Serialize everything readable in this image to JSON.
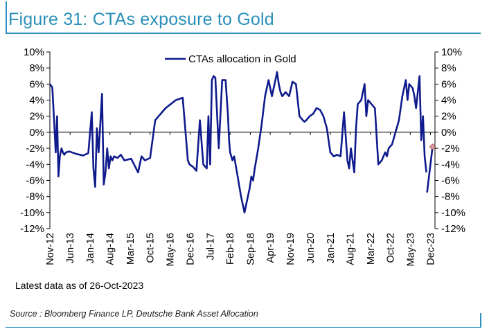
{
  "header": {
    "title": "Figure 31: CTAs exposure to Gold"
  },
  "footer": {
    "note": "Latest data as of 26-Oct-2023",
    "source": "Source : Bloomberg Finance LP, Deutsche Bank Asset Allocation"
  },
  "colors": {
    "accent": "#2a8fb8",
    "series": "#0f1a8c",
    "marker": "#e8a0a0"
  },
  "chart_data": {
    "type": "line",
    "title": "Figure 31: CTAs exposure to Gold",
    "xlabel": "",
    "ylabel": "",
    "ylim": [
      -12,
      10
    ],
    "xlim": [
      2012.83,
      2024.05
    ],
    "yticks": [
      10,
      8,
      6,
      4,
      2,
      0,
      -2,
      -4,
      -6,
      -8,
      -10,
      -12
    ],
    "ytick_labels": [
      "10%",
      "8%",
      "6%",
      "4%",
      "2%",
      "0%",
      "-2%",
      "-4%",
      "-6%",
      "-8%",
      "-10%",
      "-12%"
    ],
    "xticks": [
      2012.83,
      2013.42,
      2014.0,
      2014.58,
      2015.17,
      2015.75,
      2016.33,
      2016.92,
      2017.5,
      2018.08,
      2018.67,
      2019.25,
      2019.83,
      2020.42,
      2021.0,
      2021.58,
      2022.17,
      2022.75,
      2023.33,
      2023.92
    ],
    "xtick_labels": [
      "Nov-12",
      "Jun-13",
      "Jan-14",
      "Aug-14",
      "Mar-15",
      "Oct-15",
      "May-16",
      "Dec-16",
      "Jul-17",
      "Feb-18",
      "Sep-18",
      "Apr-19",
      "Nov-19",
      "Jun-20",
      "Jan-21",
      "Aug-21",
      "Mar-22",
      "Oct-22",
      "May-23",
      "Dec-23"
    ],
    "legend": {
      "position": "top-center",
      "entries": [
        "CTAs allocation in Gold"
      ]
    },
    "series": [
      {
        "name": "CTAs allocation in Gold",
        "x": [
          2012.83,
          2012.9,
          2012.96,
          2013.0,
          2013.04,
          2013.08,
          2013.12,
          2013.17,
          2013.21,
          2013.25,
          2013.3,
          2013.4,
          2013.6,
          2013.8,
          2013.95,
          2014.05,
          2014.1,
          2014.15,
          2014.2,
          2014.25,
          2014.3,
          2014.35,
          2014.4,
          2014.45,
          2014.5,
          2014.55,
          2014.6,
          2014.65,
          2014.7,
          2014.8,
          2014.9,
          2015.0,
          2015.2,
          2015.4,
          2015.5,
          2015.6,
          2015.75,
          2015.9,
          2016.0,
          2016.1,
          2016.2,
          2016.35,
          2016.5,
          2016.7,
          2016.85,
          2016.9,
          2017.0,
          2017.1,
          2017.2,
          2017.3,
          2017.4,
          2017.45,
          2017.5,
          2017.55,
          2017.6,
          2017.65,
          2017.75,
          2017.85,
          2017.95,
          2018.02,
          2018.05,
          2018.08,
          2018.15,
          2018.2,
          2018.3,
          2018.4,
          2018.5,
          2018.6,
          2018.65,
          2018.7,
          2018.75,
          2018.8,
          2018.9,
          2019.0,
          2019.1,
          2019.2,
          2019.3,
          2019.4,
          2019.45,
          2019.5,
          2019.55,
          2019.6,
          2019.7,
          2019.8,
          2019.9,
          2020.0,
          2020.1,
          2020.2,
          2020.25,
          2020.3,
          2020.4,
          2020.5,
          2020.6,
          2020.7,
          2020.8,
          2020.9,
          2021.0,
          2021.1,
          2021.2,
          2021.3,
          2021.4,
          2021.5,
          2021.55,
          2021.6,
          2021.7,
          2021.75,
          2021.8,
          2021.9,
          2022.0,
          2022.05,
          2022.1,
          2022.2,
          2022.3,
          2022.4,
          2022.5,
          2022.6,
          2022.65,
          2022.7,
          2022.8,
          2022.9,
          2023.0,
          2023.1,
          2023.2,
          2023.25,
          2023.3,
          2023.4,
          2023.45,
          2023.5,
          2023.55,
          2023.6,
          2023.65,
          2023.7,
          2023.75,
          2023.8
        ],
        "values": [
          6.0,
          5.6,
          1.0,
          -2.5,
          2.0,
          -5.5,
          -3.0,
          -2.0,
          -2.5,
          -2.8,
          -2.5,
          -2.4,
          -2.7,
          -2.9,
          -2.6,
          2.5,
          -4.5,
          -6.8,
          0.5,
          -2.5,
          1.0,
          4.8,
          -6.5,
          -5.0,
          -2.0,
          -4.5,
          -3.0,
          -3.5,
          -3.0,
          -3.2,
          -2.8,
          -3.5,
          -3.3,
          -5.0,
          -3.0,
          -3.5,
          -3.2,
          1.5,
          2.0,
          2.5,
          3.0,
          3.5,
          4.0,
          4.3,
          -3.5,
          -4.0,
          -4.3,
          -4.8,
          1.5,
          -4.0,
          -4.5,
          2.0,
          -4.0,
          6.5,
          7.0,
          6.8,
          -2.0,
          6.5,
          6.5,
          2.0,
          -1.0,
          -2.5,
          -3.5,
          -3.0,
          -5.5,
          -8.0,
          -10.0,
          -8.0,
          -7.0,
          -5.5,
          -6.0,
          -4.5,
          -2.0,
          1.0,
          4.5,
          6.5,
          4.5,
          6.5,
          7.5,
          6.0,
          5.0,
          4.5,
          5.0,
          4.5,
          6.3,
          6.0,
          2.0,
          1.5,
          1.3,
          1.5,
          2.0,
          2.3,
          3.0,
          2.8,
          2.0,
          0.5,
          -2.5,
          -3.0,
          -2.8,
          -3.0,
          2.5,
          -3.5,
          -4.5,
          -2.0,
          -5.0,
          0.5,
          3.5,
          4.0,
          6.0,
          2.0,
          4.0,
          3.5,
          3.0,
          -4.0,
          -3.5,
          -2.5,
          -3.0,
          -2.0,
          -1.5,
          0.0,
          1.5,
          4.5,
          6.5,
          4.0,
          6.0,
          5.5,
          4.5,
          3.0,
          5.0,
          7.0,
          -1.0,
          2.0,
          -3.0,
          -5.0
        ]
      }
    ],
    "annotations": [
      {
        "type": "marker",
        "x": 2023.82,
        "y": -7.5,
        "label": ""
      },
      {
        "type": "marker",
        "x": 2023.98,
        "y": -1.8,
        "label": ""
      }
    ]
  }
}
